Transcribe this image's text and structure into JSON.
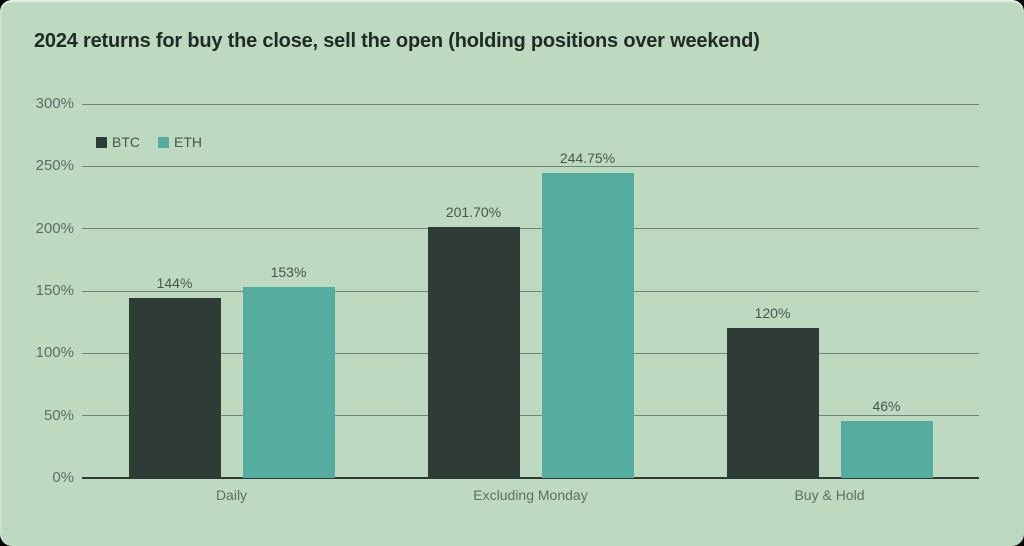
{
  "page": {
    "background": "#000000"
  },
  "card": {
    "background": "#bddac0"
  },
  "colors": {
    "title_text": "#202b27",
    "tick_text": "#5d6d66",
    "value_text": "#49544f",
    "category_text": "#5d6d66",
    "gridline": "#72827a",
    "axis_line": "#2e3b37"
  },
  "chart_data": {
    "type": "bar",
    "title": "2024 returns for buy the close, sell the open (holding positions over weekend)",
    "categories": [
      "Daily",
      "Excluding Monday",
      "Buy & Hold"
    ],
    "series": [
      {
        "name": "BTC",
        "color": "#2e3b37",
        "values": [
          144,
          201.7,
          120
        ],
        "data_labels": [
          "144%",
          "201.70%",
          "120%"
        ]
      },
      {
        "name": "ETH",
        "color": "#54ad9e",
        "values": [
          153,
          244.75,
          46
        ],
        "data_labels": [
          "153%",
          "244.75%",
          "46%"
        ]
      }
    ],
    "xlabel": "",
    "ylabel": "",
    "ylim": [
      0,
      300
    ],
    "yticks": [
      0,
      50,
      100,
      150,
      200,
      250,
      300
    ],
    "ytick_labels": [
      "0%",
      "50%",
      "100%",
      "150%",
      "200%",
      "250%",
      "300%"
    ],
    "grid": true,
    "legend_position": "top-left"
  }
}
